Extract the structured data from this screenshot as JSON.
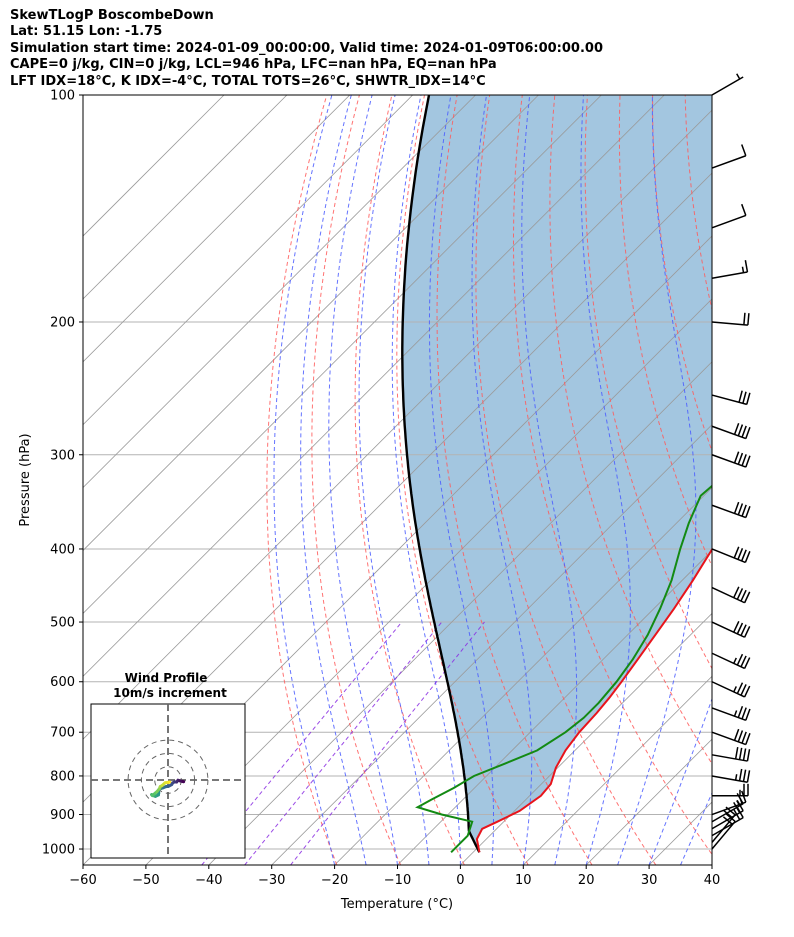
{
  "header": {
    "line1": "SkewTLogP BoscombeDown",
    "line2": "Lat: 51.15   Lon: -1.75",
    "line3": "Simulation start time: 2024-01-09_00:00:00, Valid time: 2024-01-09T06:00:00.00",
    "line4": "CAPE=0 j/kg, CIN=0 j/kg, LCL=946 hPa, LFC=nan hPa, EQ=nan hPa",
    "line5": "LFT IDX=18$^\\circ$C, K IDX=-4$^\\circ$C, TOTAL TOTS=26$^\\circ$C, SHWTR_IDX=14$^\\circ$C"
  },
  "colors": {
    "temperature": "#e8141b",
    "dewpoint": "#138a13",
    "parcel": "#000000",
    "cape_fill": "#a3c6e0",
    "dry_adiabat": "#ff5a5a",
    "moist_adiabat": "#4a5cff",
    "isotherm": "#9a9a9a",
    "mixing_ratio": "#8a2be2"
  },
  "chart_data": {
    "type": "line",
    "title": "",
    "xlabel": "Temperature ($^\\circ$C)",
    "ylabel": "Pressure (hPa)",
    "xlim": [
      -60,
      40
    ],
    "ylim": [
      1050,
      100
    ],
    "yscale": "log",
    "xticks": [
      "−60",
      "−50",
      "−40",
      "−30",
      "−20",
      "−10",
      "0",
      "10",
      "20",
      "30",
      "40"
    ],
    "yticks": [
      "100",
      "200",
      "300",
      "400",
      "500",
      "600",
      "700",
      "800",
      "900",
      "1000"
    ],
    "grid": true,
    "series": [
      {
        "name": "",
        "role": "temperature",
        "points": [
          [
            1.0,
            1010
          ],
          [
            -1.5,
            970
          ],
          [
            -2.3,
            940
          ],
          [
            -1.0,
            920
          ],
          [
            0.8,
            890
          ],
          [
            1.8,
            850
          ],
          [
            1.5,
            820
          ],
          [
            -0.3,
            780
          ],
          [
            -1.5,
            740
          ],
          [
            -2.2,
            700
          ],
          [
            -2.5,
            660
          ],
          [
            -2.9,
            630
          ],
          [
            -3.5,
            600
          ],
          [
            -4.5,
            560
          ],
          [
            -5.6,
            520
          ],
          [
            -6.8,
            480
          ],
          [
            -8.3,
            440
          ],
          [
            -10.2,
            400
          ],
          [
            -12.4,
            370
          ],
          [
            -14.6,
            350
          ],
          [
            -15.3,
            330
          ],
          [
            -15.4,
            310
          ],
          [
            -14.8,
            295
          ],
          [
            -13.2,
            270
          ],
          [
            -12.0,
            250
          ],
          [
            -10.8,
            230
          ],
          [
            -9.4,
            210
          ],
          [
            -8.3,
            200
          ],
          [
            -7.0,
            180
          ],
          [
            -6.0,
            165
          ],
          [
            -4.3,
            150
          ],
          [
            -2.5,
            135
          ],
          [
            -1.0,
            120
          ],
          [
            0.5,
            110
          ],
          [
            2.0,
            100
          ]
        ]
      },
      {
        "name": "",
        "role": "dewpoint",
        "points": [
          [
            -3.5,
            1010
          ],
          [
            -3.5,
            985
          ],
          [
            -3.5,
            960
          ],
          [
            -5.0,
            920
          ],
          [
            -11.0,
            900
          ],
          [
            -16.0,
            880
          ],
          [
            -15.0,
            860
          ],
          [
            -13.3,
            830
          ],
          [
            -12.0,
            800
          ],
          [
            -9.0,
            770
          ],
          [
            -6.0,
            740
          ],
          [
            -4.4,
            700
          ],
          [
            -3.8,
            670
          ],
          [
            -3.8,
            640
          ],
          [
            -4.3,
            600
          ],
          [
            -5.3,
            560
          ],
          [
            -6.8,
            520
          ],
          [
            -9.0,
            480
          ],
          [
            -11.7,
            440
          ],
          [
            -15.3,
            400
          ],
          [
            -18.0,
            370
          ],
          [
            -20.5,
            340
          ],
          [
            -20.0,
            320
          ],
          [
            -18.5,
            305
          ],
          [
            -19.4,
            280
          ],
          [
            -20.7,
            260
          ],
          [
            -24.6,
            240
          ],
          [
            -32.0,
            220
          ],
          [
            -32.6,
            210
          ],
          [
            -32.8,
            200
          ],
          [
            -30.4,
            180
          ],
          [
            -31.0,
            170
          ],
          [
            -32.5,
            155
          ],
          [
            -32.5,
            145
          ],
          [
            -28.8,
            130
          ],
          [
            -27.2,
            120
          ],
          [
            -25.0,
            110
          ],
          [
            -23.0,
            100
          ]
        ]
      },
      {
        "name": "",
        "role": "parcel",
        "profile": "dry adiabat from 1.0 °C at 1010 hPa to LCL 946 hPa, then moist adiabat to 100 hPa"
      }
    ],
    "shading": "blue fill between temperature and parcel profiles",
    "reference_lines": {
      "isotherms_step_c": 10,
      "dry_adiabats_theta_k": [
        250,
        260,
        270,
        280,
        290,
        300,
        310,
        320,
        330,
        340,
        350,
        360,
        370,
        380,
        390,
        400,
        410,
        420,
        430,
        440,
        450,
        460,
        470,
        480
      ],
      "moist_adiabats_start_c": [
        -20,
        -15,
        -10,
        -5,
        0,
        5,
        10,
        15,
        20,
        25,
        30,
        35
      ],
      "mixing_ratio_g_per_kg": [
        0.1,
        0.2,
        0.4
      ]
    },
    "wind_barbs": {
      "levels_hpa": [
        1000,
        980,
        960,
        940,
        920,
        900,
        850,
        800,
        750,
        700,
        650,
        600,
        550,
        500,
        450,
        400,
        350,
        300,
        275,
        250,
        200,
        175,
        150,
        125,
        100
      ],
      "from_deg": [
        40,
        40,
        60,
        60,
        60,
        70,
        90,
        100,
        100,
        110,
        110,
        115,
        115,
        115,
        115,
        112,
        110,
        110,
        110,
        105,
        95,
        80,
        70,
        70,
        60
      ],
      "speed_kt": [
        20,
        20,
        20,
        20,
        15,
        15,
        25,
        35,
        40,
        40,
        35,
        35,
        35,
        40,
        40,
        40,
        40,
        40,
        40,
        30,
        20,
        15,
        10,
        10,
        5
      ]
    }
  },
  "hodograph": {
    "title_line1": "Wind Profile",
    "title_line2": "10m/s increment",
    "ring_step_ms": 10,
    "rings": [
      1,
      2,
      3
    ],
    "trace_uv_ms": [
      [
        11.8,
        1.3
      ],
      [
        9.5,
        0.8
      ],
      [
        7.5,
        0.2
      ],
      [
        6.5,
        1.5
      ],
      [
        5.0,
        1.4
      ],
      [
        3.5,
        2.2
      ],
      [
        2.8,
        3.4
      ],
      [
        0.9,
        4.5
      ],
      [
        -1.5,
        5.0
      ],
      [
        -3.6,
        5.8
      ],
      [
        -6.5,
        6.8
      ],
      [
        -7.2,
        8.3
      ],
      [
        -7.0,
        9.8
      ],
      [
        -7.2,
        11.2
      ],
      [
        -9.5,
        12.3
      ],
      [
        -11.5,
        11.6
      ],
      [
        -12.3,
        11.0
      ],
      [
        -11.8,
        11.7
      ],
      [
        -9.6,
        9.9
      ],
      [
        -8.3,
        8.8
      ],
      [
        -6.3,
        6.4
      ],
      [
        -5.8,
        4.9
      ],
      [
        -4.5,
        4.2
      ],
      [
        -2.1,
        2.1
      ],
      [
        0.6,
        1.7
      ],
      [
        1.3,
        1.5
      ]
    ]
  }
}
